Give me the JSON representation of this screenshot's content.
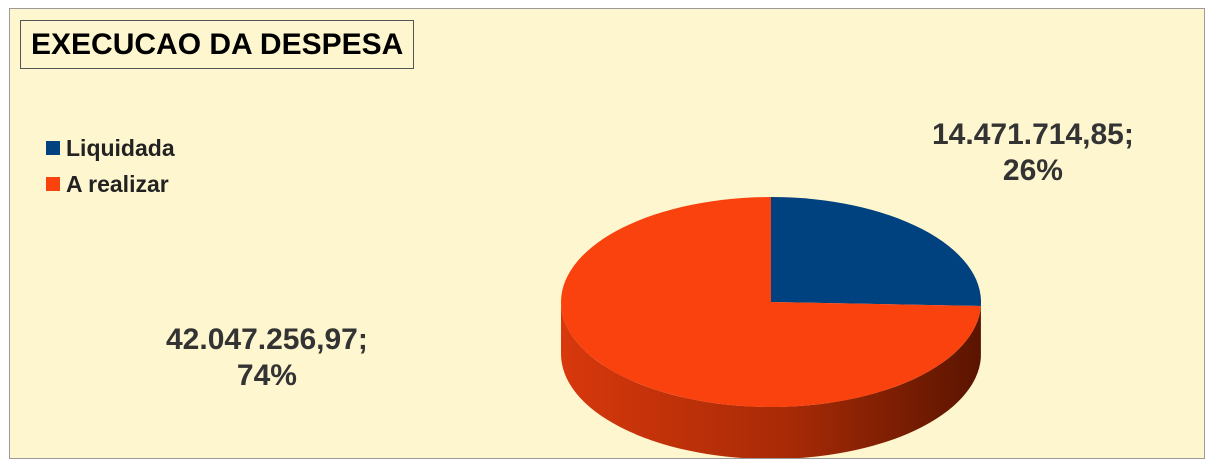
{
  "chart_data": {
    "type": "pie",
    "title": "EXECUCAO DA DESPESA",
    "three_d": true,
    "legend_position": "left",
    "slices": [
      {
        "name": "Liquidada",
        "value": 14471714.85,
        "value_label": "14.471.714,85;",
        "percent_label": "26%",
        "color": "#00427f",
        "side_color": "#00213f"
      },
      {
        "name": "A realizar",
        "value": 42047256.97,
        "value_label": "42.047.256,97;",
        "percent_label": "74%",
        "color": "#fa420f",
        "side_color": "#8a1e00"
      }
    ]
  }
}
